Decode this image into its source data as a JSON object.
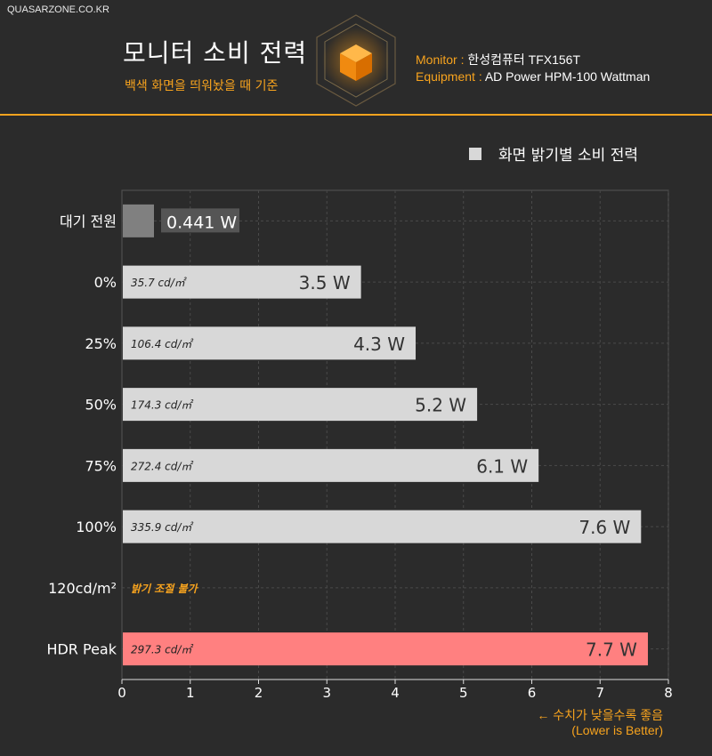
{
  "header": {
    "site": "QUASARZONE.CO.KR",
    "title": "모니터 소비 전력",
    "subtitle": "백색 화면을 띄워놨을 때 기준",
    "monitor_key": "Monitor :",
    "monitor_value": "한성컴퓨터 TFX156T",
    "equipment_key": "Equipment :",
    "equipment_value": "AD Power HPM-100 Wattman"
  },
  "legend": {
    "label": "화면 밝기별 소비 전력"
  },
  "footer": {
    "line1": "← 수치가 낮을수록 좋음",
    "line2": "(Lower is Better)"
  },
  "colors": {
    "accent": "#f7a31e",
    "bar": "#d8d8d8",
    "standby": "#808080",
    "hdr": "#ff8080",
    "background": "#2b2b2b"
  },
  "chart_data": {
    "type": "bar",
    "orientation": "horizontal",
    "xlim": [
      0,
      8
    ],
    "xticks": [
      "0",
      "1",
      "2",
      "3",
      "4",
      "5",
      "6",
      "7",
      "8"
    ],
    "grid": true,
    "categories": [
      "대기 전원",
      "0%",
      "25%",
      "50%",
      "75%",
      "100%",
      "120cd/m²",
      "HDR Peak"
    ],
    "values": [
      0.441,
      3.5,
      4.3,
      5.2,
      6.1,
      7.6,
      null,
      7.7
    ],
    "value_labels": [
      "0.441 W",
      "3.5 W",
      "4.3 W",
      "5.2 W",
      "6.1 W",
      "7.6 W",
      "",
      "7.7 W"
    ],
    "luminance_labels": [
      "",
      "35.7 cd/㎡",
      "106.4 cd/㎡",
      "174.3 cd/㎡",
      "272.4 cd/㎡",
      "335.9 cd/㎡",
      "",
      "297.3 cd/㎡"
    ],
    "notes": [
      "",
      "",
      "",
      "",
      "",
      "",
      "밝기 조절 불가",
      ""
    ],
    "bar_styles": [
      "standby",
      "normal",
      "normal",
      "normal",
      "normal",
      "normal",
      "none",
      "hdr"
    ],
    "unit": "W"
  }
}
